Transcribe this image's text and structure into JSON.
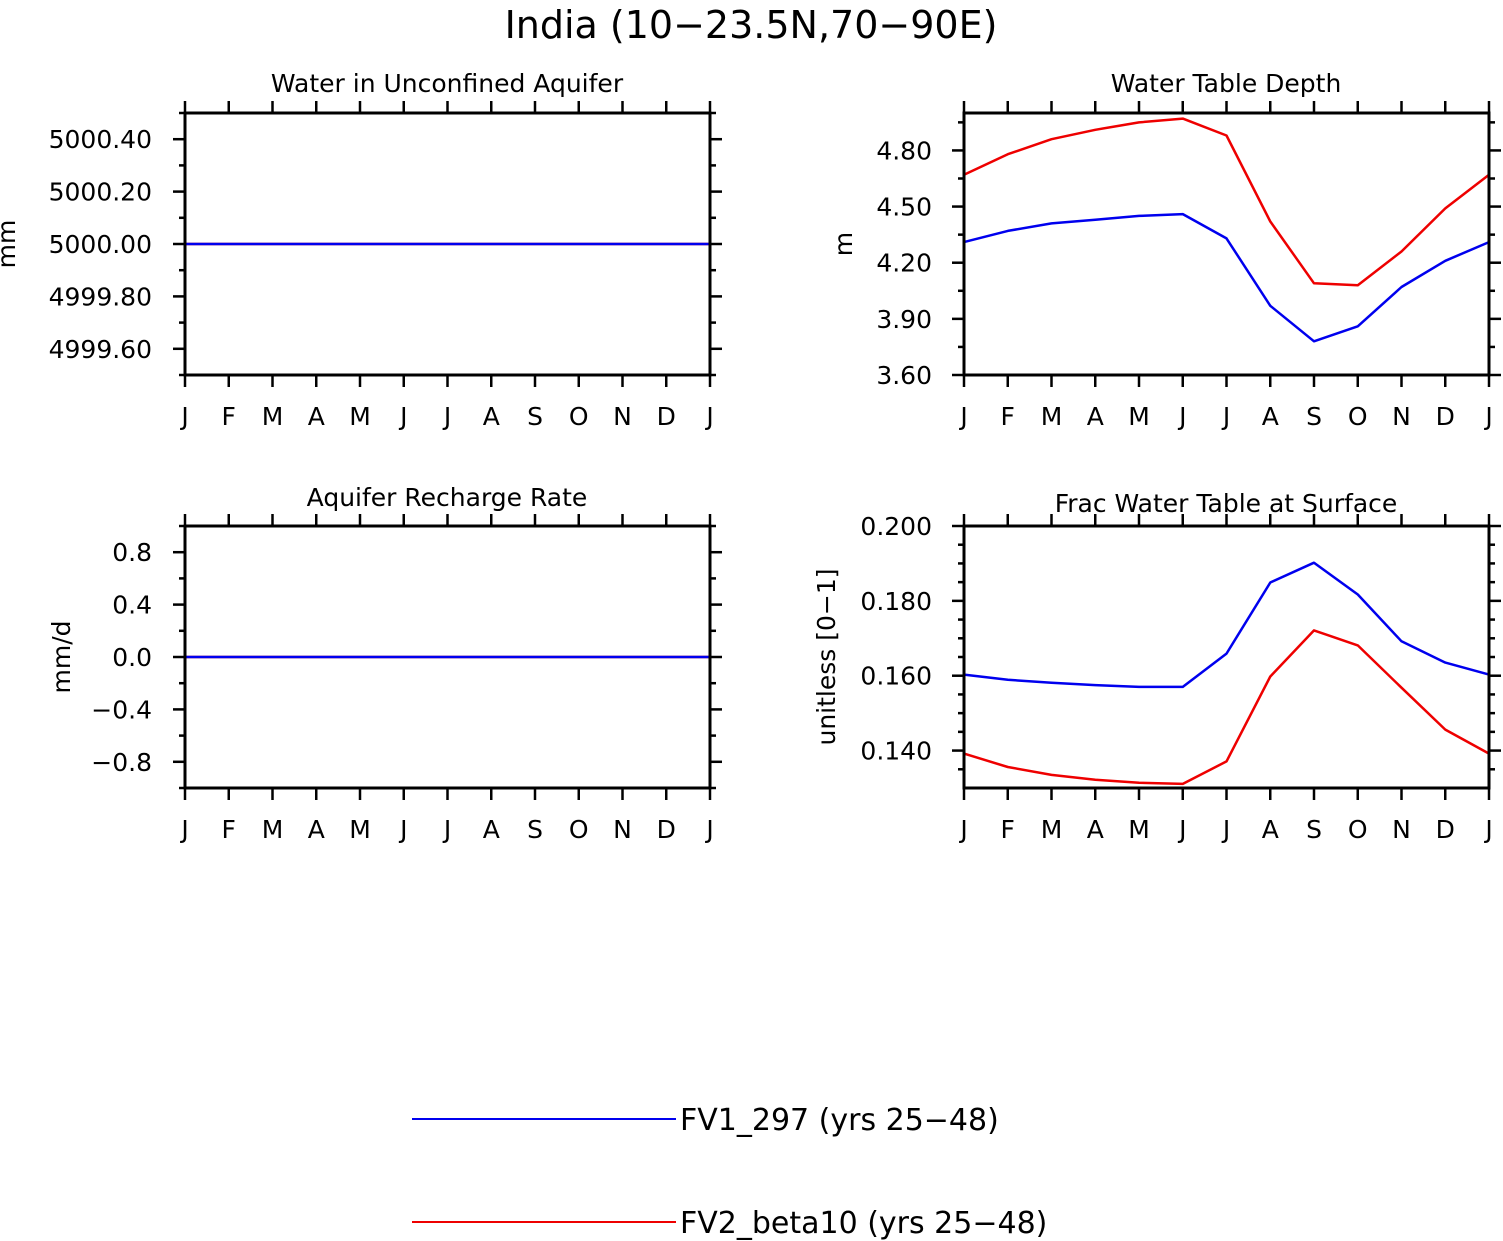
{
  "title": "India (10−23.5N,70−90E)",
  "months": [
    "J",
    "F",
    "M",
    "A",
    "M",
    "J",
    "J",
    "A",
    "S",
    "O",
    "N",
    "D",
    "J"
  ],
  "colors": {
    "blue": "#0000ee",
    "red": "#ee0000",
    "axis": "#000000"
  },
  "legend": [
    {
      "label": "FV1_297 (yrs 25−48)",
      "color": "#0000ee"
    },
    {
      "label": "FV2_beta10 (yrs 25−48)",
      "color": "#ee0000"
    }
  ],
  "chart_data": [
    {
      "type": "line",
      "title": "Water in Unconfined Aquifer",
      "ylabel": "mm",
      "xlabel": "",
      "ylim": [
        4999.5,
        5000.5
      ],
      "yticks": [
        4999.6,
        4999.8,
        5000.0,
        5000.2,
        5000.4
      ],
      "ytick_labels": [
        "4999.60",
        "4999.80",
        "5000.00",
        "5000.20",
        "5000.40"
      ],
      "yminor": [
        4999.5,
        4999.7,
        4999.9,
        5000.1,
        5000.3,
        5000.5
      ],
      "categories": [
        "J",
        "F",
        "M",
        "A",
        "M",
        "J",
        "J",
        "A",
        "S",
        "O",
        "N",
        "D",
        "J"
      ],
      "series": [
        {
          "name": "FV2_beta10 (yrs 25−48)",
          "color": "#ee0000",
          "values": [
            5000,
            5000,
            5000,
            5000,
            5000,
            5000,
            5000,
            5000,
            5000,
            5000,
            5000,
            5000,
            5000
          ]
        },
        {
          "name": "FV1_297 (yrs 25−48)",
          "color": "#0000ee",
          "values": [
            5000,
            5000,
            5000,
            5000,
            5000,
            5000,
            5000,
            5000,
            5000,
            5000,
            5000,
            5000,
            5000
          ]
        }
      ]
    },
    {
      "type": "line",
      "title": "Water Table Depth",
      "ylabel": "m",
      "xlabel": "",
      "ylim": [
        3.6,
        5.0
      ],
      "yticks": [
        3.6,
        3.9,
        4.2,
        4.5,
        4.8
      ],
      "ytick_labels": [
        "3.60",
        "3.90",
        "4.20",
        "4.50",
        "4.80"
      ],
      "yminor": [
        3.75,
        4.05,
        4.35,
        4.65,
        4.95
      ],
      "categories": [
        "J",
        "F",
        "M",
        "A",
        "M",
        "J",
        "J",
        "A",
        "S",
        "O",
        "N",
        "D",
        "J"
      ],
      "series": [
        {
          "name": "FV1_297 (yrs 25−48)",
          "color": "#0000ee",
          "values": [
            4.31,
            4.37,
            4.41,
            4.43,
            4.45,
            4.46,
            4.33,
            3.97,
            3.78,
            3.86,
            4.07,
            4.21,
            4.31
          ]
        },
        {
          "name": "FV2_beta10 (yrs 25−48)",
          "color": "#ee0000",
          "values": [
            4.67,
            4.78,
            4.86,
            4.91,
            4.95,
            4.97,
            4.88,
            4.42,
            4.09,
            4.08,
            4.26,
            4.49,
            4.67
          ]
        }
      ]
    },
    {
      "type": "line",
      "title": "Aquifer Recharge Rate",
      "ylabel": "mm/d",
      "xlabel": "",
      "ylim": [
        -1.0,
        1.0
      ],
      "yticks": [
        -0.8,
        -0.4,
        0.0,
        0.4,
        0.8
      ],
      "ytick_labels": [
        "−0.8",
        "−0.4",
        "0.0",
        "0.4",
        "0.8"
      ],
      "yminor": [
        -1.0,
        -0.6,
        -0.2,
        0.2,
        0.6,
        1.0
      ],
      "categories": [
        "J",
        "F",
        "M",
        "A",
        "M",
        "J",
        "J",
        "A",
        "S",
        "O",
        "N",
        "D",
        "J"
      ],
      "series": [
        {
          "name": "FV2_beta10 (yrs 25−48)",
          "color": "#ee0000",
          "values": [
            0,
            0,
            0,
            0,
            0,
            0,
            0,
            0,
            0,
            0,
            0,
            0,
            0
          ]
        },
        {
          "name": "FV1_297 (yrs 25−48)",
          "color": "#0000ee",
          "values": [
            0,
            0,
            0,
            0,
            0,
            0,
            0,
            0,
            0,
            0,
            0,
            0,
            0
          ]
        }
      ]
    },
    {
      "type": "line",
      "title": "Frac Water Table at Surface",
      "ylabel": "unitless [0−1]",
      "xlabel": "",
      "ylim": [
        0.13,
        0.2
      ],
      "yticks": [
        0.14,
        0.16,
        0.18,
        0.2
      ],
      "ytick_labels": [
        "0.140",
        "0.160",
        "0.180",
        "0.200"
      ],
      "yminor": [
        0.135,
        0.145,
        0.15,
        0.155,
        0.165,
        0.17,
        0.175,
        0.185,
        0.19,
        0.195
      ],
      "categories": [
        "J",
        "F",
        "M",
        "A",
        "M",
        "J",
        "J",
        "A",
        "S",
        "O",
        "N",
        "D",
        "J"
      ],
      "series": [
        {
          "name": "FV1_297 (yrs 25−48)",
          "color": "#0000ee",
          "values": [
            0.1603,
            0.1589,
            0.1581,
            0.1575,
            0.157,
            0.157,
            0.1659,
            0.1849,
            0.1902,
            0.1817,
            0.1692,
            0.1635,
            0.1603
          ]
        },
        {
          "name": "FV2_beta10 (yrs 25−48)",
          "color": "#ee0000",
          "values": [
            0.1392,
            0.1356,
            0.1335,
            0.1322,
            0.1314,
            0.1311,
            0.1371,
            0.1598,
            0.1721,
            0.1681,
            0.1568,
            0.1456,
            0.1392
          ]
        }
      ]
    }
  ]
}
